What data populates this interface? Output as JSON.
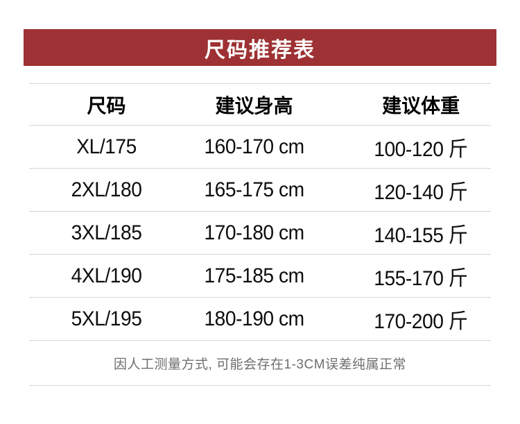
{
  "title_bar": {
    "label": "尺码推荐表"
  },
  "table": {
    "headers": [
      "尺码",
      "建议身高",
      "建议体重"
    ],
    "rows": [
      [
        "XL/175",
        "160-170 cm",
        "100-120 斤"
      ],
      [
        "2XL/180",
        "165-175 cm",
        "120-140 斤"
      ],
      [
        "3XL/185",
        "170-180 cm",
        "140-155 斤"
      ],
      [
        "4XL/190",
        "175-185 cm",
        "155-170 斤"
      ],
      [
        "5XL/195",
        "180-190 cm",
        "170-200 斤"
      ]
    ]
  },
  "footer": {
    "note": "因人工测量方式, 可能会存在1-3CM误差纯属正常"
  },
  "colors": {
    "accent_red": "#9e3133",
    "divider": "#d6d6d6",
    "text_primary": "#0d0d0d",
    "note_gray": "#6f6f6f"
  }
}
